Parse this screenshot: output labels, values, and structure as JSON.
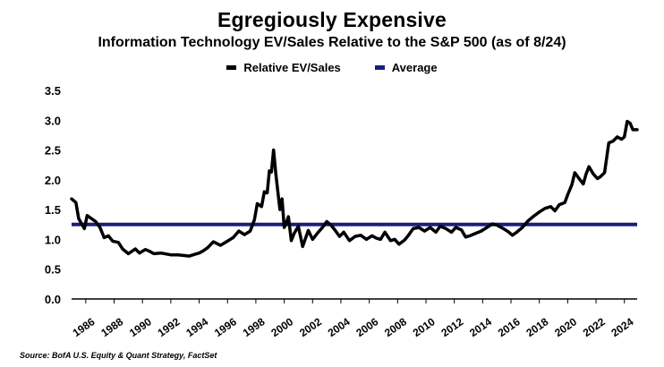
{
  "chart_data": {
    "type": "line",
    "title": "Egregiously Expensive",
    "subtitle": "Information Technology EV/Sales Relative to the S&P 500 (as of 8/24)",
    "xlabel": "",
    "ylabel": "",
    "ylim": [
      0,
      3.5
    ],
    "yticks": [
      "0.0",
      "0.5",
      "1.0",
      "1.5",
      "2.0",
      "2.5",
      "3.0",
      "3.5"
    ],
    "xlim": [
      1985.0,
      2024.9
    ],
    "xticks": [
      "1986",
      "1988",
      "1990",
      "1992",
      "1994",
      "1996",
      "1998",
      "2000",
      "2002",
      "2004",
      "2006",
      "2008",
      "2010",
      "2012",
      "2014",
      "2016",
      "2018",
      "2020",
      "2022",
      "2024"
    ],
    "grid": false,
    "legend_position": "top-center",
    "colors": {
      "series": "#000000",
      "average": "#1b1e7a"
    },
    "series": [
      {
        "name": "Relative EV/Sales",
        "x": [
          1985.0,
          1985.3,
          1985.5,
          1985.9,
          1986.1,
          1986.7,
          1987.0,
          1987.3,
          1987.6,
          1987.9,
          1988.3,
          1988.6,
          1989.0,
          1989.5,
          1989.8,
          1990.2,
          1990.5,
          1990.8,
          1991.3,
          1992.0,
          1992.5,
          1992.9,
          1993.3,
          1993.7,
          1994.0,
          1994.3,
          1994.6,
          1995.0,
          1995.5,
          1996.0,
          1996.4,
          1996.8,
          1997.2,
          1997.6,
          1997.9,
          1998.1,
          1998.4,
          1998.6,
          1998.8,
          1998.95,
          1999.1,
          1999.25,
          1999.4,
          1999.55,
          1999.7,
          1999.85,
          2000.0,
          2000.15,
          2000.3,
          2000.5,
          2000.7,
          2001.0,
          2001.3,
          2001.7,
          2002.0,
          2002.4,
          2002.7,
          2003.0,
          2003.3,
          2003.6,
          2003.9,
          2004.2,
          2004.6,
          2005.0,
          2005.4,
          2005.8,
          2006.2,
          2006.5,
          2006.8,
          2007.1,
          2007.5,
          2007.8,
          2008.1,
          2008.5,
          2008.8,
          2009.1,
          2009.5,
          2009.9,
          2010.3,
          2010.7,
          2011.0,
          2011.4,
          2011.8,
          2012.1,
          2012.5,
          2012.8,
          2013.1,
          2013.5,
          2013.9,
          2014.3,
          2014.7,
          2015.0,
          2015.4,
          2015.8,
          2016.1,
          2016.4,
          2016.8,
          2017.2,
          2017.6,
          2018.0,
          2018.4,
          2018.8,
          2019.1,
          2019.4,
          2019.8,
          2020.0,
          2020.3,
          2020.5,
          2020.8,
          2021.1,
          2021.3,
          2021.5,
          2021.8,
          2022.1,
          2022.3,
          2022.6,
          2022.9,
          2023.2,
          2023.5,
          2023.8,
          2024.0,
          2024.2,
          2024.4,
          2024.6,
          2024.9
        ],
        "values": [
          1.68,
          1.62,
          1.35,
          1.18,
          1.4,
          1.3,
          1.2,
          1.03,
          1.06,
          0.97,
          0.95,
          0.84,
          0.76,
          0.84,
          0.77,
          0.83,
          0.8,
          0.76,
          0.77,
          0.74,
          0.74,
          0.73,
          0.72,
          0.75,
          0.77,
          0.81,
          0.86,
          0.96,
          0.9,
          0.97,
          1.03,
          1.14,
          1.08,
          1.14,
          1.33,
          1.6,
          1.55,
          1.8,
          1.78,
          2.15,
          2.13,
          2.5,
          2.12,
          1.8,
          1.5,
          1.68,
          1.2,
          1.28,
          1.38,
          0.98,
          1.1,
          1.22,
          0.88,
          1.15,
          1.0,
          1.12,
          1.2,
          1.3,
          1.24,
          1.15,
          1.05,
          1.12,
          0.98,
          1.05,
          1.07,
          1.0,
          1.06,
          1.02,
          1.0,
          1.12,
          0.98,
          1.0,
          0.92,
          0.99,
          1.08,
          1.18,
          1.2,
          1.14,
          1.2,
          1.12,
          1.22,
          1.18,
          1.12,
          1.2,
          1.16,
          1.04,
          1.06,
          1.1,
          1.14,
          1.2,
          1.26,
          1.24,
          1.19,
          1.13,
          1.07,
          1.12,
          1.2,
          1.31,
          1.39,
          1.46,
          1.52,
          1.55,
          1.48,
          1.58,
          1.62,
          1.75,
          1.92,
          2.12,
          2.02,
          1.93,
          2.1,
          2.22,
          2.1,
          2.02,
          2.05,
          2.12,
          2.62,
          2.65,
          2.72,
          2.68,
          2.72,
          2.98,
          2.95,
          2.84,
          2.84
        ]
      },
      {
        "name": "Average",
        "values": [
          1.25
        ]
      }
    ]
  },
  "legend": {
    "series_label": "Relative EV/Sales",
    "average_label": "Average"
  },
  "source": "Source: BofA U.S. Equity & Quant Strategy, FactSet"
}
